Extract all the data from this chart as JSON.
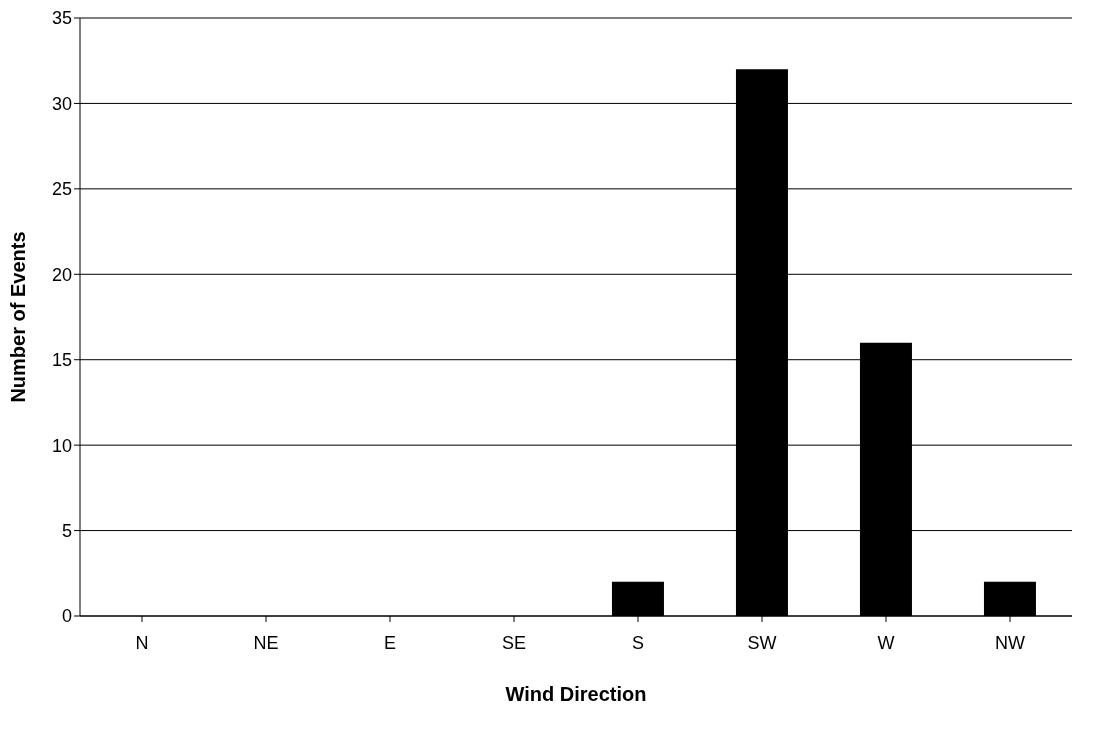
{
  "chart_data": {
    "type": "bar",
    "xlabel": "Wind Direction",
    "ylabel": "Number of Events",
    "categories": [
      "N",
      "NE",
      "E",
      "SE",
      "S",
      "SW",
      "W",
      "NW"
    ],
    "values": [
      0,
      0,
      0,
      0,
      2,
      32,
      16,
      2
    ],
    "color": "#000000",
    "ylim": [
      0,
      35
    ],
    "yticks": [
      0,
      5,
      10,
      15,
      20,
      25,
      30,
      35
    ],
    "grid": "y",
    "legend": false
  }
}
